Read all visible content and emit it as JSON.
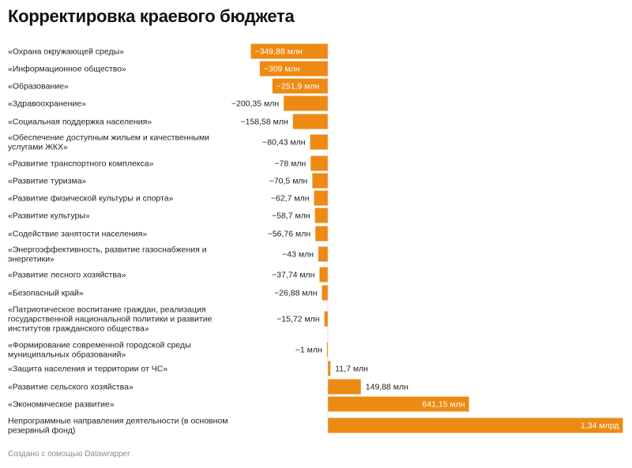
{
  "header": {
    "title": "Корректировка краевого бюджета"
  },
  "footer": {
    "credit": "Создано с помощью Datawrapper"
  },
  "colors": {
    "bar": "#ED8A14",
    "label_inside": "#ffffff",
    "label_outside": "#222222"
  },
  "chart_data": {
    "type": "bar",
    "orientation": "horizontal",
    "unit_base": "млн",
    "categories": [
      "«Охрана окружающей среды»",
      "«Информационное общество»",
      "«Образование»",
      "«Здравоохранение»",
      "«Социальная поддержка населения»",
      "«Обеспечение доступным жильем и качественными услугами ЖКХ»",
      "«Развитие транспортного комплекса»",
      "«Развитие туризма»",
      "«Развитие физической культуры и спорта»",
      "«Развитие культуры»",
      "«Содействие занятости населения»",
      "«Энергоэффективность, развитие газоснабжения и энергетики»",
      "«Развитие лесного хозяйства»",
      "«Безопасный край»",
      "«Патриотическое воспитание граждан, реализация государственной национальной политики и развитие институтов гражданского общества»",
      "«Формирование современной городской среды муниципальных образований»",
      "«Защита населения и территории от ЧС»",
      "«Развитие сельского хозяйства»",
      "«Экономическое развитие»",
      "Непрограммные направления деятельности (в основном резервный фонд)"
    ],
    "values": [
      -349.88,
      -309,
      -251.9,
      -200.35,
      -158.58,
      -80.43,
      -78,
      -70.5,
      -62.7,
      -58.7,
      -56.76,
      -43,
      -37.74,
      -26.88,
      -15.72,
      -1,
      11.7,
      149.88,
      641.15,
      1340
    ],
    "value_labels": [
      "−349,88 млн",
      "−309 млн",
      "−251,9 млн",
      "−200,35 млн",
      "−158,58 млн",
      "−80,43 млн",
      "−78 млн",
      "−70,5 млн",
      "−62,7 млн",
      "−58,7 млн",
      "−56,76 млн",
      "−43 млн",
      "−37,74 млн",
      "−26,88 млн",
      "−15,72 млн",
      "−1 млн",
      "11,7 млн",
      "149,88 млн",
      "641,15 млн",
      "1,34 млрд"
    ],
    "label_inside": [
      true,
      true,
      true,
      false,
      false,
      false,
      false,
      false,
      false,
      false,
      false,
      false,
      false,
      false,
      false,
      false,
      false,
      false,
      true,
      true
    ]
  }
}
